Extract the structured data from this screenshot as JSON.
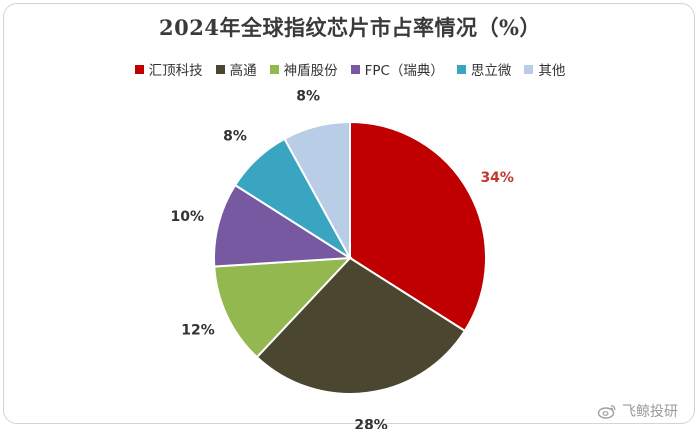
{
  "chart_data": {
    "type": "pie",
    "title": "2024年全球指纹芯片市占率情况（%）",
    "slices": [
      {
        "label": "汇顶科技",
        "value": 34,
        "display": "34%",
        "color": "#c00000"
      },
      {
        "label": "高通",
        "value": 28,
        "display": "28%",
        "color": "#4a4630"
      },
      {
        "label": "神盾股份",
        "value": 12,
        "display": "12%",
        "color": "#92b84f"
      },
      {
        "label": "FPC（瑞典）",
        "value": 10,
        "display": "10%",
        "color": "#7659a0"
      },
      {
        "label": "思立微",
        "value": 8,
        "display": "8%",
        "color": "#3aa5c0"
      },
      {
        "label": "其他",
        "value": 8,
        "display": "8%",
        "color": "#b9cde6"
      }
    ],
    "legend_position": "top",
    "start_angle_deg": 0,
    "direction": "clockwise"
  },
  "label_colors": {
    "highlight": "#c0392b",
    "default": "#333333"
  },
  "watermark": {
    "text": "飞鲸投研",
    "icon": "weibo-icon"
  }
}
